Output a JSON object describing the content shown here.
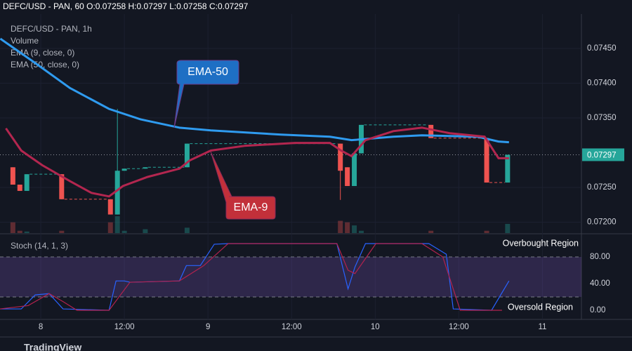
{
  "header": "DEFC/USD - PAN, 60  O:0.07258 H:0.07297 L:0.07258 C:0.07297",
  "chart_data": [
    {
      "type": "candlestick",
      "legend": [
        "DEFC/USD - PAN, 1h",
        "Volume",
        "EMA (9, close, 0)",
        "EMA (50, close, 0)"
      ],
      "up_color": "#26a69a",
      "down_color": "#ef5350",
      "x": [
        -4,
        -3,
        -2,
        3,
        10,
        11,
        12,
        15,
        21,
        43,
        44,
        45,
        46,
        56,
        64,
        67
      ],
      "open": [
        0.07279,
        0.07254,
        0.07245,
        0.07269,
        0.07233,
        0.07211,
        0.07274,
        0.07277,
        0.07279,
        0.07313,
        0.07279,
        0.07252,
        0.07299,
        0.0734,
        0.07321,
        0.07257
      ],
      "high": [
        0.07279,
        0.07254,
        0.07269,
        0.07269,
        0.07233,
        0.07363,
        0.07277,
        0.07279,
        0.07313,
        0.07313,
        0.07279,
        0.07299,
        0.0734,
        0.0734,
        0.07321,
        0.07297
      ],
      "low": [
        0.07254,
        0.07245,
        0.07245,
        0.07233,
        0.07211,
        0.07211,
        0.07274,
        0.07277,
        0.07279,
        0.07232,
        0.07252,
        0.07252,
        0.07299,
        0.07321,
        0.07257,
        0.07257
      ],
      "close": [
        0.07254,
        0.07245,
        0.07269,
        0.07233,
        0.07211,
        0.07274,
        0.07277,
        0.07279,
        0.07313,
        0.07274,
        0.07252,
        0.07299,
        0.0734,
        0.07321,
        0.07257,
        0.07297
      ],
      "volume": [
        14,
        3,
        2,
        3,
        14,
        22,
        3,
        5,
        7,
        16,
        14,
        10,
        3,
        3,
        3,
        12
      ],
      "lines": [
        {
          "name": "EMA-50",
          "color": "#2f9bef",
          "x": [
            -5.8,
            -0.8,
            4.2,
            9.8,
            14.3,
            19.9,
            24.4,
            34.5,
            41.5,
            44.6,
            50.6,
            54.7,
            62.7,
            65.7,
            67.2
          ],
          "values": [
            0.07464,
            0.07429,
            0.07393,
            0.07363,
            0.07348,
            0.07336,
            0.07332,
            0.07326,
            0.07323,
            0.07318,
            0.07323,
            0.07325,
            0.07323,
            0.07316,
            0.07315
          ]
        },
        {
          "name": "EMA-9",
          "color": "#b3264f",
          "x": [
            -5,
            -2.8,
            0.2,
            4.2,
            7.3,
            9.8,
            11.8,
            15.3,
            19.9,
            21.4,
            24.4,
            29.4,
            36.5,
            41.5,
            43.1,
            44.6,
            46.6,
            50.6,
            54.7,
            58.7,
            63.7,
            65.7,
            67.2
          ],
          "values": [
            0.07335,
            0.07303,
            0.07282,
            0.07259,
            0.07242,
            0.07237,
            0.07252,
            0.07265,
            0.07277,
            0.07289,
            0.07303,
            0.0731,
            0.07314,
            0.07314,
            0.07303,
            0.07295,
            0.07318,
            0.07331,
            0.07336,
            0.07328,
            0.07323,
            0.07292,
            0.07292
          ]
        }
      ],
      "annotations": [
        {
          "text": "EMA-50"
        },
        {
          "text": "EMA-9"
        }
      ],
      "last_price": {
        "value": 0.07297,
        "label": "0.07297"
      },
      "xlim": [
        -5.85,
        77.6
      ],
      "xticks": [
        {
          "value": 0,
          "label": "8"
        },
        {
          "value": 12,
          "label": "12:00"
        },
        {
          "value": 24,
          "label": "9"
        },
        {
          "value": 36,
          "label": "12:00"
        },
        {
          "value": 48,
          "label": "10"
        },
        {
          "value": 60,
          "label": "12:00"
        },
        {
          "value": 72,
          "label": "11"
        }
      ],
      "ylim": [
        0.071843,
        0.074995
      ],
      "yticks": [
        {
          "value": 0.0745,
          "label": "0.07450"
        },
        {
          "value": 0.074,
          "label": "0.07400"
        },
        {
          "value": 0.0735,
          "label": "0.07350"
        },
        {
          "value": 0.0725,
          "label": "0.07250"
        },
        {
          "value": 0.072,
          "label": "0.07200"
        }
      ]
    },
    {
      "type": "line",
      "title": "Stoch (14, 1, 3)",
      "annotations": [
        {
          "text": "Overbought Region"
        },
        {
          "text": "Oversold Region"
        }
      ],
      "bands": [
        20,
        80
      ],
      "series": [
        {
          "name": "%K",
          "color": "#2962ff",
          "x": [
            -5.85,
            -2.8,
            -0.8,
            1.2,
            3.2,
            9.8,
            10.8,
            12,
            12.8,
            19.9,
            20.9,
            22.9,
            24.9,
            26.9,
            42.5,
            44.1,
            45.1,
            46.6,
            55.7,
            58.2,
            59.2,
            64.7,
            67.2
          ],
          "values": [
            2,
            2,
            23,
            25,
            2,
            0,
            44,
            44,
            42,
            44,
            67,
            67,
            99,
            100,
            100,
            32,
            65,
            100,
            100,
            84,
            2,
            0,
            44
          ]
        },
        {
          "name": "%D",
          "color": "#b2224e",
          "x": [
            -5.85,
            -1.8,
            1.2,
            3.2,
            5.2,
            9.8,
            12.8,
            19.9,
            23.4,
            26.9,
            42.5,
            44.1,
            45.1,
            48.1,
            54.7,
            57.7,
            60.2,
            64.7,
            66.2
          ],
          "values": [
            2,
            7,
            25,
            13,
            0,
            0,
            42,
            44,
            67,
            100,
            100,
            60,
            55,
            100,
            100,
            80,
            0,
            0,
            0
          ]
        }
      ],
      "ylim": [
        -13.7,
        112.6
      ],
      "yticks": [
        {
          "value": 80,
          "label": "80.00"
        },
        {
          "value": 40,
          "label": "40.00"
        },
        {
          "value": 0,
          "label": "0.00"
        }
      ]
    }
  ],
  "footer": "TradingView"
}
